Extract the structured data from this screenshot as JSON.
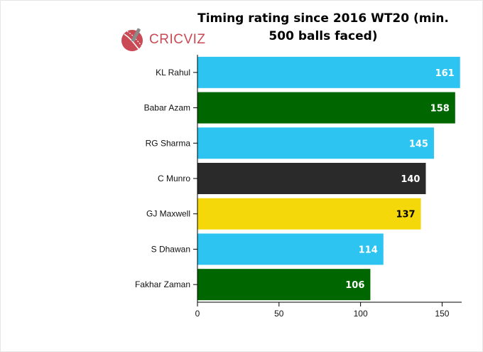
{
  "logo_text": "CRICVIZ",
  "colors": {
    "logo": "#c94a55",
    "axis": "#000000"
  },
  "chart_data": {
    "type": "bar",
    "orientation": "horizontal",
    "title": "Timing rating since 2016 WT20 (min. 500 balls faced)",
    "xlabel": "",
    "ylabel": "",
    "categories": [
      "KL Rahul",
      "Babar Azam",
      "RG Sharma",
      "C Munro",
      "GJ Maxwell",
      "S Dhawan",
      "Fakhar Zaman"
    ],
    "values": [
      161,
      158,
      145,
      140,
      137,
      114,
      106
    ],
    "bar_colors": [
      "#2ec4f1",
      "#006600",
      "#2ec4f1",
      "#2a2a2a",
      "#f5d80a",
      "#2ec4f1",
      "#006600"
    ],
    "label_colors": [
      "#ffffff",
      "#ffffff",
      "#ffffff",
      "#ffffff",
      "#000000",
      "#ffffff",
      "#ffffff"
    ],
    "xlim": [
      0,
      162
    ],
    "xticks": [
      0,
      50,
      100,
      150
    ],
    "grid": false,
    "legend": "none"
  }
}
